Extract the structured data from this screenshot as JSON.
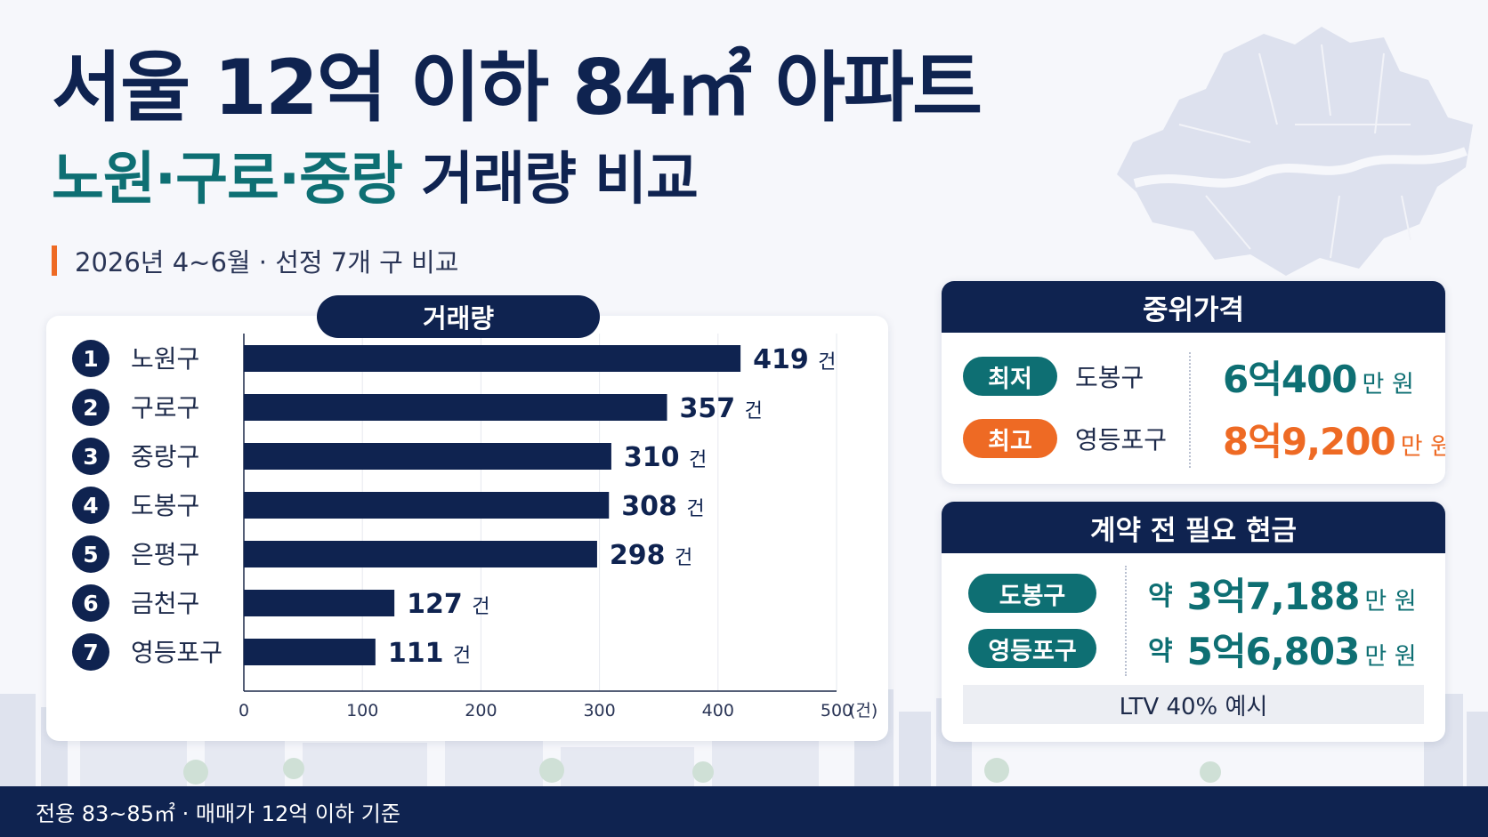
{
  "title": {
    "main": "서울 12억 이하 84㎡ 아파트",
    "sub_teal": "노원·구로·중랑",
    "sub_navy": " 거래량 비교"
  },
  "period": "2026년 4~6월 · 선정 7개 구 비교",
  "chart_data": {
    "type": "bar",
    "orientation": "horizontal",
    "title": "거래량",
    "categories": [
      "노원구",
      "구로구",
      "중랑구",
      "도봉구",
      "은평구",
      "금천구",
      "영등포구"
    ],
    "ranks": [
      "1",
      "2",
      "3",
      "4",
      "5",
      "6",
      "7"
    ],
    "values": [
      419,
      357,
      310,
      308,
      298,
      127,
      111
    ],
    "value_unit": "건",
    "xlim": [
      0,
      500
    ],
    "x_ticks": [
      0,
      100,
      200,
      300,
      400,
      500
    ],
    "x_unit": "(건)",
    "bar_color": "#0f2350",
    "grid": true
  },
  "median_price": {
    "title": "중위가격",
    "rows": [
      {
        "tag": "최저",
        "district": "도봉구",
        "amount": "6억400",
        "unit": "만 원",
        "color": "#0e6f73"
      },
      {
        "tag": "최고",
        "district": "영등포구",
        "amount": "8억9,200",
        "unit": "만 원",
        "color": "#ee6a24"
      }
    ]
  },
  "cash_needed": {
    "title": "계약 전 필요 현금",
    "rows": [
      {
        "district": "도봉구",
        "prefix": "약",
        "amount": "3억7,188",
        "unit": "만 원"
      },
      {
        "district": "영등포구",
        "prefix": "약",
        "amount": "5억6,803",
        "unit": "만 원"
      }
    ],
    "note": "LTV 40% 예시"
  },
  "footer": "전용 83~85㎡ · 매매가 12억 이하 기준",
  "colors": {
    "navy": "#0f2350",
    "teal": "#0e6f73",
    "orange": "#ee6a24"
  }
}
